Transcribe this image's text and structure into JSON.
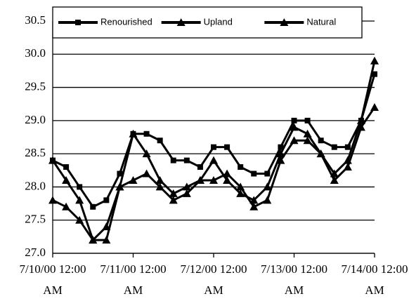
{
  "chart_data": {
    "type": "line",
    "x": [
      "2000-07-10T00:00",
      "2000-07-10T04:00",
      "2000-07-10T08:00",
      "2000-07-10T12:00",
      "2000-07-10T16:00",
      "2000-07-10T20:00",
      "2000-07-11T00:00",
      "2000-07-11T04:00",
      "2000-07-11T08:00",
      "2000-07-11T12:00",
      "2000-07-11T16:00",
      "2000-07-11T20:00",
      "2000-07-12T00:00",
      "2000-07-12T04:00",
      "2000-07-12T08:00",
      "2000-07-12T12:00",
      "2000-07-12T16:00",
      "2000-07-12T20:00",
      "2000-07-13T00:00",
      "2000-07-13T04:00",
      "2000-07-13T08:00",
      "2000-07-13T12:00",
      "2000-07-13T16:00",
      "2000-07-13T20:00",
      "2000-07-14T00:00"
    ],
    "series": [
      {
        "name": "Renourished",
        "color": "#000000",
        "marker": "square",
        "values": [
          28.4,
          28.3,
          28.0,
          27.7,
          27.8,
          28.2,
          28.8,
          28.8,
          28.7,
          28.4,
          28.4,
          28.3,
          28.6,
          28.6,
          28.3,
          28.2,
          28.2,
          28.6,
          29.0,
          29.0,
          28.7,
          28.6,
          28.6,
          29.0,
          29.7
        ]
      },
      {
        "name": "Upland",
        "color": "#000000",
        "marker": "triangle",
        "values": [
          27.8,
          27.7,
          27.5,
          27.2,
          27.4,
          28.0,
          28.1,
          28.2,
          28.0,
          27.8,
          27.9,
          28.1,
          28.1,
          28.2,
          28.0,
          27.7,
          27.8,
          28.4,
          28.7,
          28.7,
          28.5,
          28.1,
          28.3,
          28.9,
          29.2
        ]
      },
      {
        "name": "Natural",
        "color": "#000000",
        "marker": "triangle",
        "values": [
          28.4,
          28.1,
          27.8,
          27.2,
          27.2,
          28.0,
          28.8,
          28.5,
          28.1,
          27.9,
          28.0,
          28.1,
          28.4,
          28.1,
          27.9,
          27.8,
          28.0,
          28.5,
          28.9,
          28.8,
          28.5,
          28.2,
          28.4,
          29.0,
          29.9
        ]
      }
    ],
    "xlim": [
      "2000-07-10T00:00",
      "2000-07-14T00:00"
    ],
    "xticks": [
      {
        "value": "2000-07-10T00:00",
        "label": "7/10/00 12:00 AM"
      },
      {
        "value": "2000-07-11T00:00",
        "label": "7/11/00 12:00 AM"
      },
      {
        "value": "2000-07-12T00:00",
        "label": "7/12/00 12:00 AM"
      },
      {
        "value": "2000-07-13T00:00",
        "label": "7/13/00 12:00 AM"
      },
      {
        "value": "2000-07-14T00:00",
        "label": "7/14/00 12:00 AM"
      }
    ],
    "ylim": [
      27.0,
      30.5
    ],
    "yticks": [
      {
        "value": 27,
        "label": "27.0"
      },
      27.5,
      {
        "value": 28,
        "label": "28.0"
      },
      28.5,
      {
        "value": 29,
        "label": "29.0"
      },
      29.5,
      {
        "value": 30,
        "label": "30.0"
      },
      30.5
    ],
    "grid": true,
    "legend": "top"
  }
}
